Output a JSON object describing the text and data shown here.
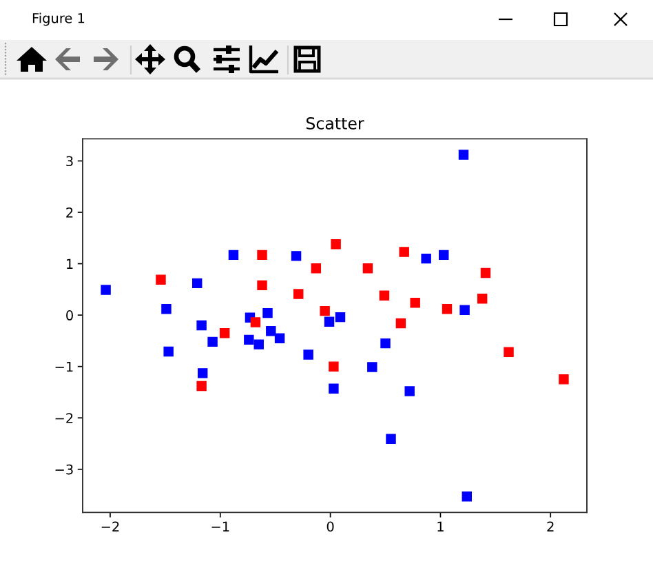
{
  "chart_data": {
    "type": "scatter",
    "title": "Scatter",
    "annotations": [
      "Figure 1"
    ],
    "marker": "square",
    "grid": false,
    "legend": false,
    "xlim": [
      -2.25,
      2.33
    ],
    "ylim": [
      -3.84,
      3.43
    ],
    "xticks": [
      {
        "value": -2,
        "label": "−2"
      },
      {
        "value": -1,
        "label": "−1"
      },
      0,
      1,
      2
    ],
    "yticks": [
      {
        "value": -3,
        "label": "−3"
      },
      {
        "value": -2,
        "label": "−2"
      },
      {
        "value": -1,
        "label": "−1"
      },
      0,
      1,
      2,
      3
    ],
    "series": [
      {
        "color": "#0000ff",
        "x": [
          -2.04,
          -0.88,
          -1.21,
          -0.31,
          -1.49,
          -1.17,
          -0.73,
          -0.57,
          -0.54,
          -0.01,
          1.21,
          0.87,
          1.03,
          1.22,
          0.09,
          -1.07,
          -1.47,
          -0.74,
          -0.65,
          -0.46,
          -0.2,
          -1.16,
          0.03,
          0.5,
          0.38,
          0.72,
          0.55,
          1.24
        ],
        "values": [
          0.49,
          1.17,
          0.62,
          1.15,
          0.12,
          -0.2,
          -0.05,
          0.04,
          -0.31,
          -0.13,
          3.12,
          1.1,
          1.17,
          0.1,
          -0.04,
          -0.52,
          -0.71,
          -0.48,
          -0.57,
          -0.45,
          -0.77,
          -1.13,
          -1.43,
          -0.55,
          -1.01,
          -1.48,
          -2.41,
          -3.53
        ]
      },
      {
        "color": "#ff0000",
        "x": [
          -1.54,
          -0.62,
          -0.62,
          -0.13,
          -0.29,
          0.05,
          -0.05,
          -0.68,
          -0.96,
          0.67,
          0.34,
          1.41,
          0.49,
          0.77,
          1.06,
          1.38,
          0.64,
          -1.17,
          0.03,
          1.62,
          2.12
        ],
        "values": [
          0.69,
          1.17,
          0.58,
          0.91,
          0.41,
          1.38,
          0.08,
          -0.14,
          -0.35,
          1.23,
          0.91,
          0.82,
          0.38,
          0.24,
          0.12,
          0.32,
          -0.16,
          -1.38,
          -1.0,
          -0.72,
          -1.25
        ]
      }
    ]
  }
}
